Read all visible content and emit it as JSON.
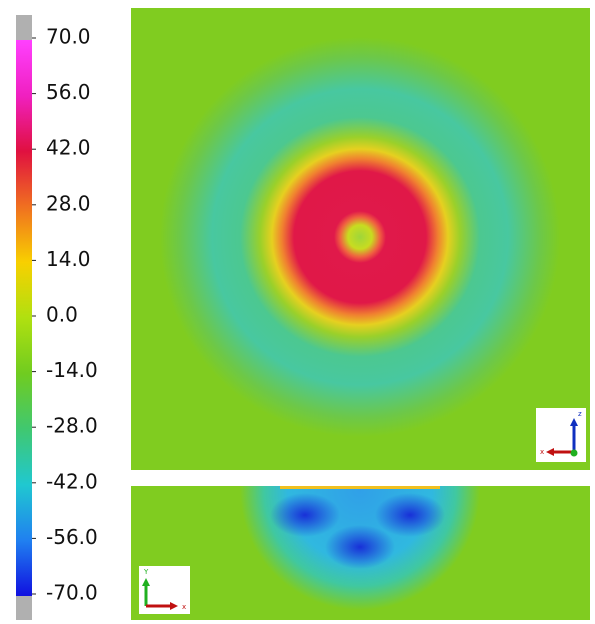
{
  "chart_data": {
    "type": "contour",
    "ylim": [
      -70,
      70
    ],
    "yticks": [
      {
        "value": 70,
        "label": "70.0"
      },
      {
        "value": 56,
        "label": "56.0"
      },
      {
        "value": 42,
        "label": "42.0"
      },
      {
        "value": 28,
        "label": "28.0"
      },
      {
        "value": 14,
        "label": "14.0"
      },
      {
        "value": 0,
        "label": "0.0"
      },
      {
        "value": -14,
        "label": "-14.0"
      },
      {
        "value": -28,
        "label": "-28.0"
      },
      {
        "value": -42,
        "label": "-42.0"
      },
      {
        "value": -56,
        "label": "-56.0"
      },
      {
        "value": -70,
        "label": "-70.0"
      }
    ],
    "annotations": [
      "z",
      "x",
      "Y",
      "x"
    ]
  }
}
